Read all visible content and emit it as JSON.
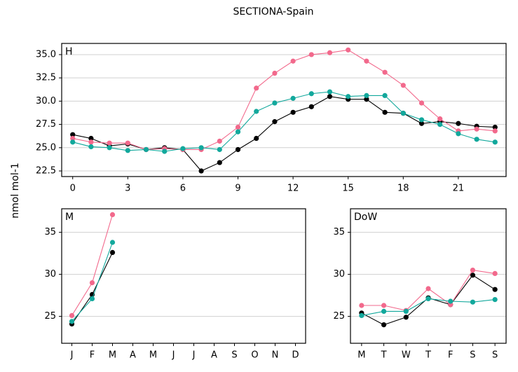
{
  "title": "SECTIONA-Spain",
  "y_label": "nmol mol-1",
  "chart_data": [
    {
      "type": "line",
      "panel_label": "H",
      "x": [
        0,
        1,
        2,
        3,
        4,
        5,
        6,
        7,
        8,
        9,
        10,
        11,
        12,
        13,
        14,
        15,
        16,
        17,
        18,
        19,
        20,
        21,
        22,
        23
      ],
      "xlim": [
        -0.6,
        23.6
      ],
      "xticks": [
        0,
        3,
        6,
        9,
        12,
        15,
        18,
        21
      ],
      "ylim": [
        21.9,
        36.2
      ],
      "yticks": [
        22.5,
        {
          "value": 25,
          "label": "25.0"
        },
        27.5,
        {
          "value": 30,
          "label": "30.0"
        },
        32.5,
        {
          "value": 35,
          "label": "35.0"
        }
      ],
      "grid": true,
      "series": [
        {
          "color": "#000000",
          "values": [
            26.4,
            26.0,
            25.2,
            25.4,
            24.8,
            25.0,
            24.8,
            22.5,
            23.4,
            24.8,
            26.0,
            27.8,
            28.8,
            29.4,
            30.5,
            30.2,
            30.2,
            28.8,
            28.7,
            27.6,
            27.8,
            27.6,
            27.3,
            27.2
          ]
        },
        {
          "color": "#f2698c",
          "values": [
            26.0,
            25.6,
            25.5,
            25.5,
            24.8,
            24.9,
            24.8,
            24.8,
            25.7,
            27.2,
            31.4,
            33.0,
            34.3,
            35.0,
            35.2,
            35.5,
            34.3,
            33.1,
            31.7,
            29.8,
            28.1,
            26.8,
            27.0,
            26.8
          ]
        },
        {
          "color": "#12a89c",
          "values": [
            25.6,
            25.1,
            25.0,
            24.7,
            24.8,
            24.6,
            24.9,
            25.0,
            24.8,
            26.7,
            28.9,
            29.8,
            30.3,
            30.8,
            31.0,
            30.5,
            30.6,
            30.6,
            28.7,
            28.0,
            27.5,
            26.5,
            25.9,
            25.6
          ]
        }
      ]
    },
    {
      "type": "line",
      "panel_label": "M",
      "categories": [
        "J",
        "F",
        "M",
        "A",
        "M",
        "J",
        "J",
        "A",
        "S",
        "O",
        "N",
        "D"
      ],
      "ylim": [
        21.8,
        37.8
      ],
      "yticks": [
        25,
        30,
        35
      ],
      "grid": true,
      "series": [
        {
          "color": "#000000",
          "values": [
            24.1,
            27.6,
            32.6,
            null,
            null,
            null,
            null,
            null,
            null,
            null,
            null,
            null
          ]
        },
        {
          "color": "#f2698c",
          "values": [
            25.1,
            29.0,
            37.1,
            null,
            null,
            null,
            null,
            null,
            null,
            null,
            null,
            null
          ]
        },
        {
          "color": "#12a89c",
          "values": [
            24.4,
            27.1,
            33.8,
            null,
            null,
            null,
            null,
            null,
            null,
            null,
            null,
            null
          ]
        }
      ]
    },
    {
      "type": "line",
      "panel_label": "DoW",
      "categories": [
        "M",
        "T",
        "W",
        "T",
        "F",
        "S",
        "S"
      ],
      "ylim": [
        21.8,
        37.8
      ],
      "yticks": [
        25,
        30,
        35
      ],
      "grid": true,
      "series": [
        {
          "color": "#000000",
          "values": [
            25.4,
            24.0,
            24.9,
            27.2,
            26.4,
            29.9,
            28.2
          ]
        },
        {
          "color": "#f2698c",
          "values": [
            26.3,
            26.3,
            25.7,
            28.3,
            26.4,
            30.5,
            30.1
          ]
        },
        {
          "color": "#12a89c",
          "values": [
            25.1,
            25.6,
            25.6,
            27.1,
            26.8,
            26.7,
            27.0
          ]
        }
      ]
    }
  ]
}
